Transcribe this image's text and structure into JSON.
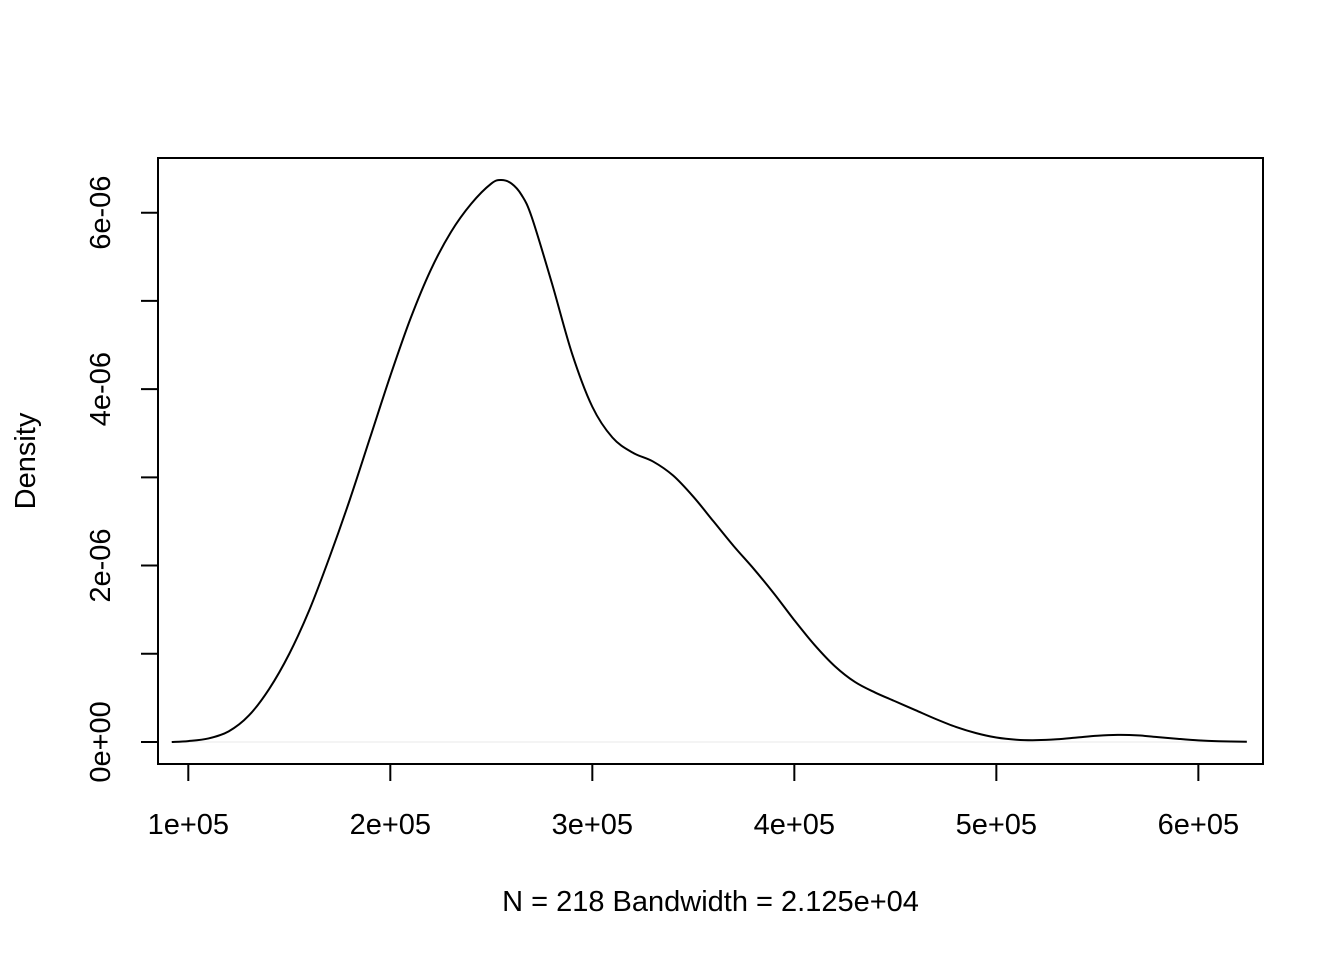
{
  "chart_data": {
    "type": "line",
    "title": "",
    "xlabel": "N = 218   Bandwidth = 2.125e+04",
    "ylabel": "Density",
    "xlim": [
      85000,
      632000
    ],
    "ylim": [
      -2.5e-07,
      6.6e-06
    ],
    "x_ticks": [
      100000,
      200000,
      300000,
      400000,
      500000,
      600000
    ],
    "x_tick_labels": [
      "1e+05",
      "2e+05",
      "3e+05",
      "4e+05",
      "5e+05",
      "6e+05"
    ],
    "y_ticks": [
      0,
      1e-06,
      2e-06,
      3e-06,
      4e-06,
      5e-06,
      6e-06
    ],
    "y_tick_labels": [
      "0e+00",
      "",
      "2e-06",
      "",
      "4e-06",
      "",
      "6e-06"
    ],
    "grid": false,
    "legend": "none",
    "series": [
      {
        "color": "#000000",
        "x": [
          91800,
          100000,
          110000,
          120000,
          130000,
          140000,
          150000,
          160000,
          170000,
          180000,
          190000,
          200000,
          210000,
          220000,
          230000,
          240000,
          250000,
          255000,
          260000,
          265000,
          270000,
          280000,
          290000,
          300000,
          310000,
          320000,
          330000,
          340000,
          350000,
          360000,
          370000,
          380000,
          390000,
          400000,
          410000,
          420000,
          430000,
          440000,
          450000,
          460000,
          470000,
          480000,
          490000,
          500000,
          510000,
          520000,
          530000,
          540000,
          550000,
          560000,
          570000,
          580000,
          590000,
          600000,
          610000,
          624000
        ],
        "y": [
          0.0,
          1e-08,
          4e-08,
          1.2e-07,
          3e-07,
          6e-07,
          1e-06,
          1.5e-06,
          2.1e-06,
          2.75e-06,
          3.45e-06,
          4.15e-06,
          4.8e-06,
          5.35e-06,
          5.78e-06,
          6.1e-06,
          6.33e-06,
          6.37e-06,
          6.33e-06,
          6.2e-06,
          5.95e-06,
          5.2e-06,
          4.4e-06,
          3.8e-06,
          3.45e-06,
          3.28e-06,
          3.18e-06,
          3.02e-06,
          2.78e-06,
          2.5e-06,
          2.22e-06,
          1.96e-06,
          1.68e-06,
          1.38e-06,
          1.1e-06,
          8.6e-07,
          6.8e-07,
          5.6e-07,
          4.6e-07,
          3.6e-07,
          2.6e-07,
          1.7e-07,
          1e-07,
          5e-08,
          2.5e-08,
          2e-08,
          3e-08,
          5e-08,
          7e-08,
          8e-08,
          7.5e-08,
          5.5e-08,
          3.5e-08,
          1.8e-08,
          8e-09,
          2e-09
        ]
      }
    ],
    "baseline": {
      "y": 0,
      "color": "#e8e8e8"
    }
  }
}
